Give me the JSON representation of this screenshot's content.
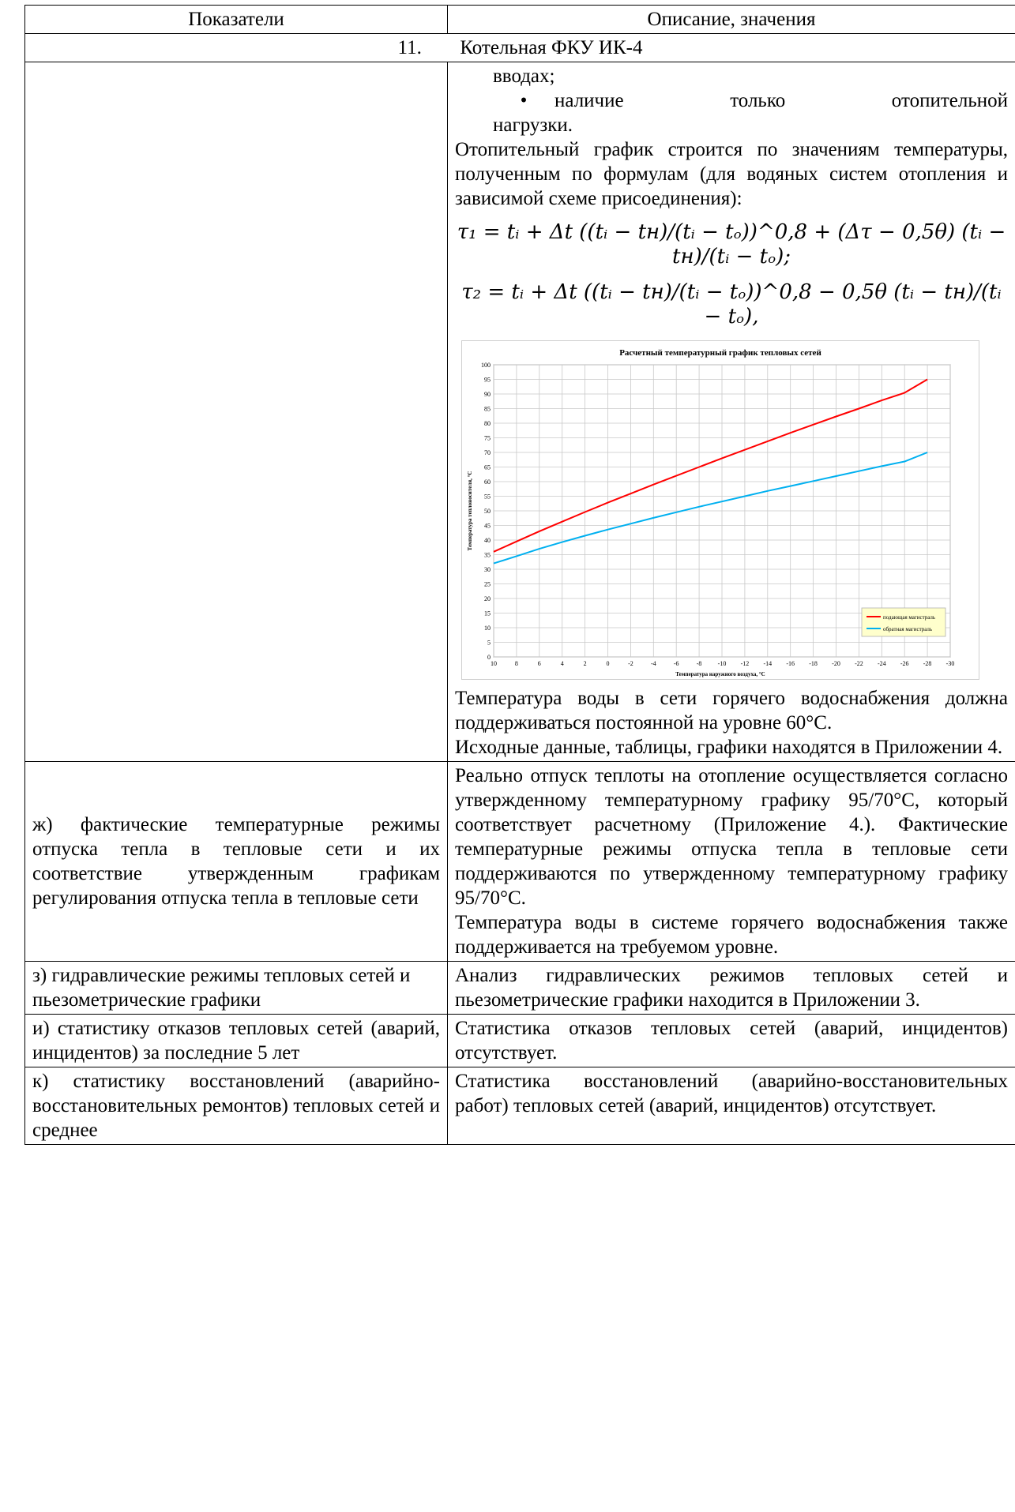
{
  "table": {
    "header": {
      "col1": "Показатели",
      "col2": "Описание, значения"
    },
    "section_number": "11.",
    "section_title": "Котельная ФКУ ИК-4",
    "row1": {
      "cont_text": "вводах;",
      "bullet_symbol": "•",
      "bullet_text_line1": "наличие только отопительной",
      "bullet_text_line2": "нагрузки.",
      "para1": "Отопительный график строится по значениям температуры, полученным по формулам (для водяных систем отопления и зависимой схеме присоединения):",
      "formula1": "τ₁ = tᵢ + Δt ((tᵢ − tн)/(tᵢ − tₒ))^0,8 + (Δτ − 0,5θ) (tᵢ − tн)/(tᵢ − tₒ);",
      "formula2": "τ₂ = tᵢ + Δt ((tᵢ − tн)/(tᵢ − tₒ))^0,8 − 0,5θ (tᵢ − tн)/(tᵢ − tₒ),",
      "para2": "Температура воды в сети горячего водоснабжения должна поддерживаться постоянной на уровне 60°С.",
      "para3": "Исходные данные, таблицы, графики находятся в Приложении 4."
    },
    "row_zh": {
      "left": "ж) фактические температурные режимы отпуска тепла в тепловые сети и их соответствие утвержденным графикам регулирования отпуска тепла в тепловые сети",
      "right_p1": "Реально отпуск теплоты на отопление осуществляется согласно утвержденному температурному графику 95/70°С, который соответствует расчетному (Приложение 4.). Фактические температурные режимы отпуска тепла в тепловые сети поддерживаются по утвержденному температурному графику 95/70°С.",
      "right_p2": "Температура воды в системе горячего водоснабжения также поддерживается на требуемом уровне."
    },
    "row_z": {
      "left": "з) гидравлические режимы тепловых сетей и пьезометрические графики",
      "right": "Анализ гидравлических режимов тепловых сетей и пьезометрические графики находится в Приложении 3."
    },
    "row_i": {
      "left": "и) статистику отказов тепловых сетей (аварий, инцидентов) за последние 5 лет",
      "right": "Статистика отказов тепловых сетей (аварий, инцидентов) отсутствует."
    },
    "row_k": {
      "left": "к) статистику восстановлений (аварийно-восстановительных ремонтов) тепловых сетей и среднее",
      "right": "Статистика восстановлений (аварийно-восстановительных работ) тепловых сетей (аварий, инцидентов) отсутствует."
    }
  },
  "chart_data": {
    "type": "line",
    "title": "Расчетный температурный график тепловых сетей",
    "xlabel": "Температура наружного воздуха, °С",
    "ylabel": "Температура теплоносителя, °С",
    "x_ticks": [
      "10",
      "8",
      "6",
      "4",
      "2",
      "0",
      "-2",
      "-4",
      "-6",
      "-8",
      "-10",
      "-12",
      "-14",
      "-16",
      "-18",
      "-20",
      "-22",
      "-24",
      "-26",
      "-28",
      "-30"
    ],
    "y_ticks": [
      "0",
      "5",
      "10",
      "15",
      "20",
      "25",
      "30",
      "35",
      "40",
      "45",
      "50",
      "55",
      "60",
      "65",
      "70",
      "75",
      "80",
      "85",
      "90",
      "95",
      "100"
    ],
    "xlim": [
      10,
      -30
    ],
    "ylim": [
      0,
      100
    ],
    "grid": true,
    "legend_position": "bottom-right",
    "series": [
      {
        "name": "подающая магистраль",
        "color": "#ff0000",
        "x": [
          10,
          8,
          6,
          4,
          2,
          0,
          -2,
          -4,
          -6,
          -8,
          -10,
          -12,
          -14,
          -16,
          -18,
          -20,
          -22,
          -24,
          -26,
          -28
        ],
        "y": [
          36,
          39.5,
          43,
          46.3,
          49.6,
          52.8,
          55.9,
          59,
          62,
          65,
          68,
          70.9,
          73.8,
          76.7,
          79.5,
          82.3,
          85,
          87.8,
          90.4,
          95
        ]
      },
      {
        "name": "обратная магистраль",
        "color": "#00b0f0",
        "x": [
          10,
          8,
          6,
          4,
          2,
          0,
          -2,
          -4,
          -6,
          -8,
          -10,
          -12,
          -14,
          -16,
          -18,
          -20,
          -22,
          -24,
          -26,
          -28
        ],
        "y": [
          32,
          34.5,
          37,
          39.3,
          41.5,
          43.6,
          45.6,
          47.6,
          49.5,
          51.4,
          53.2,
          55,
          56.8,
          58.5,
          60.2,
          61.9,
          63.6,
          65.3,
          66.9,
          70
        ]
      }
    ]
  }
}
